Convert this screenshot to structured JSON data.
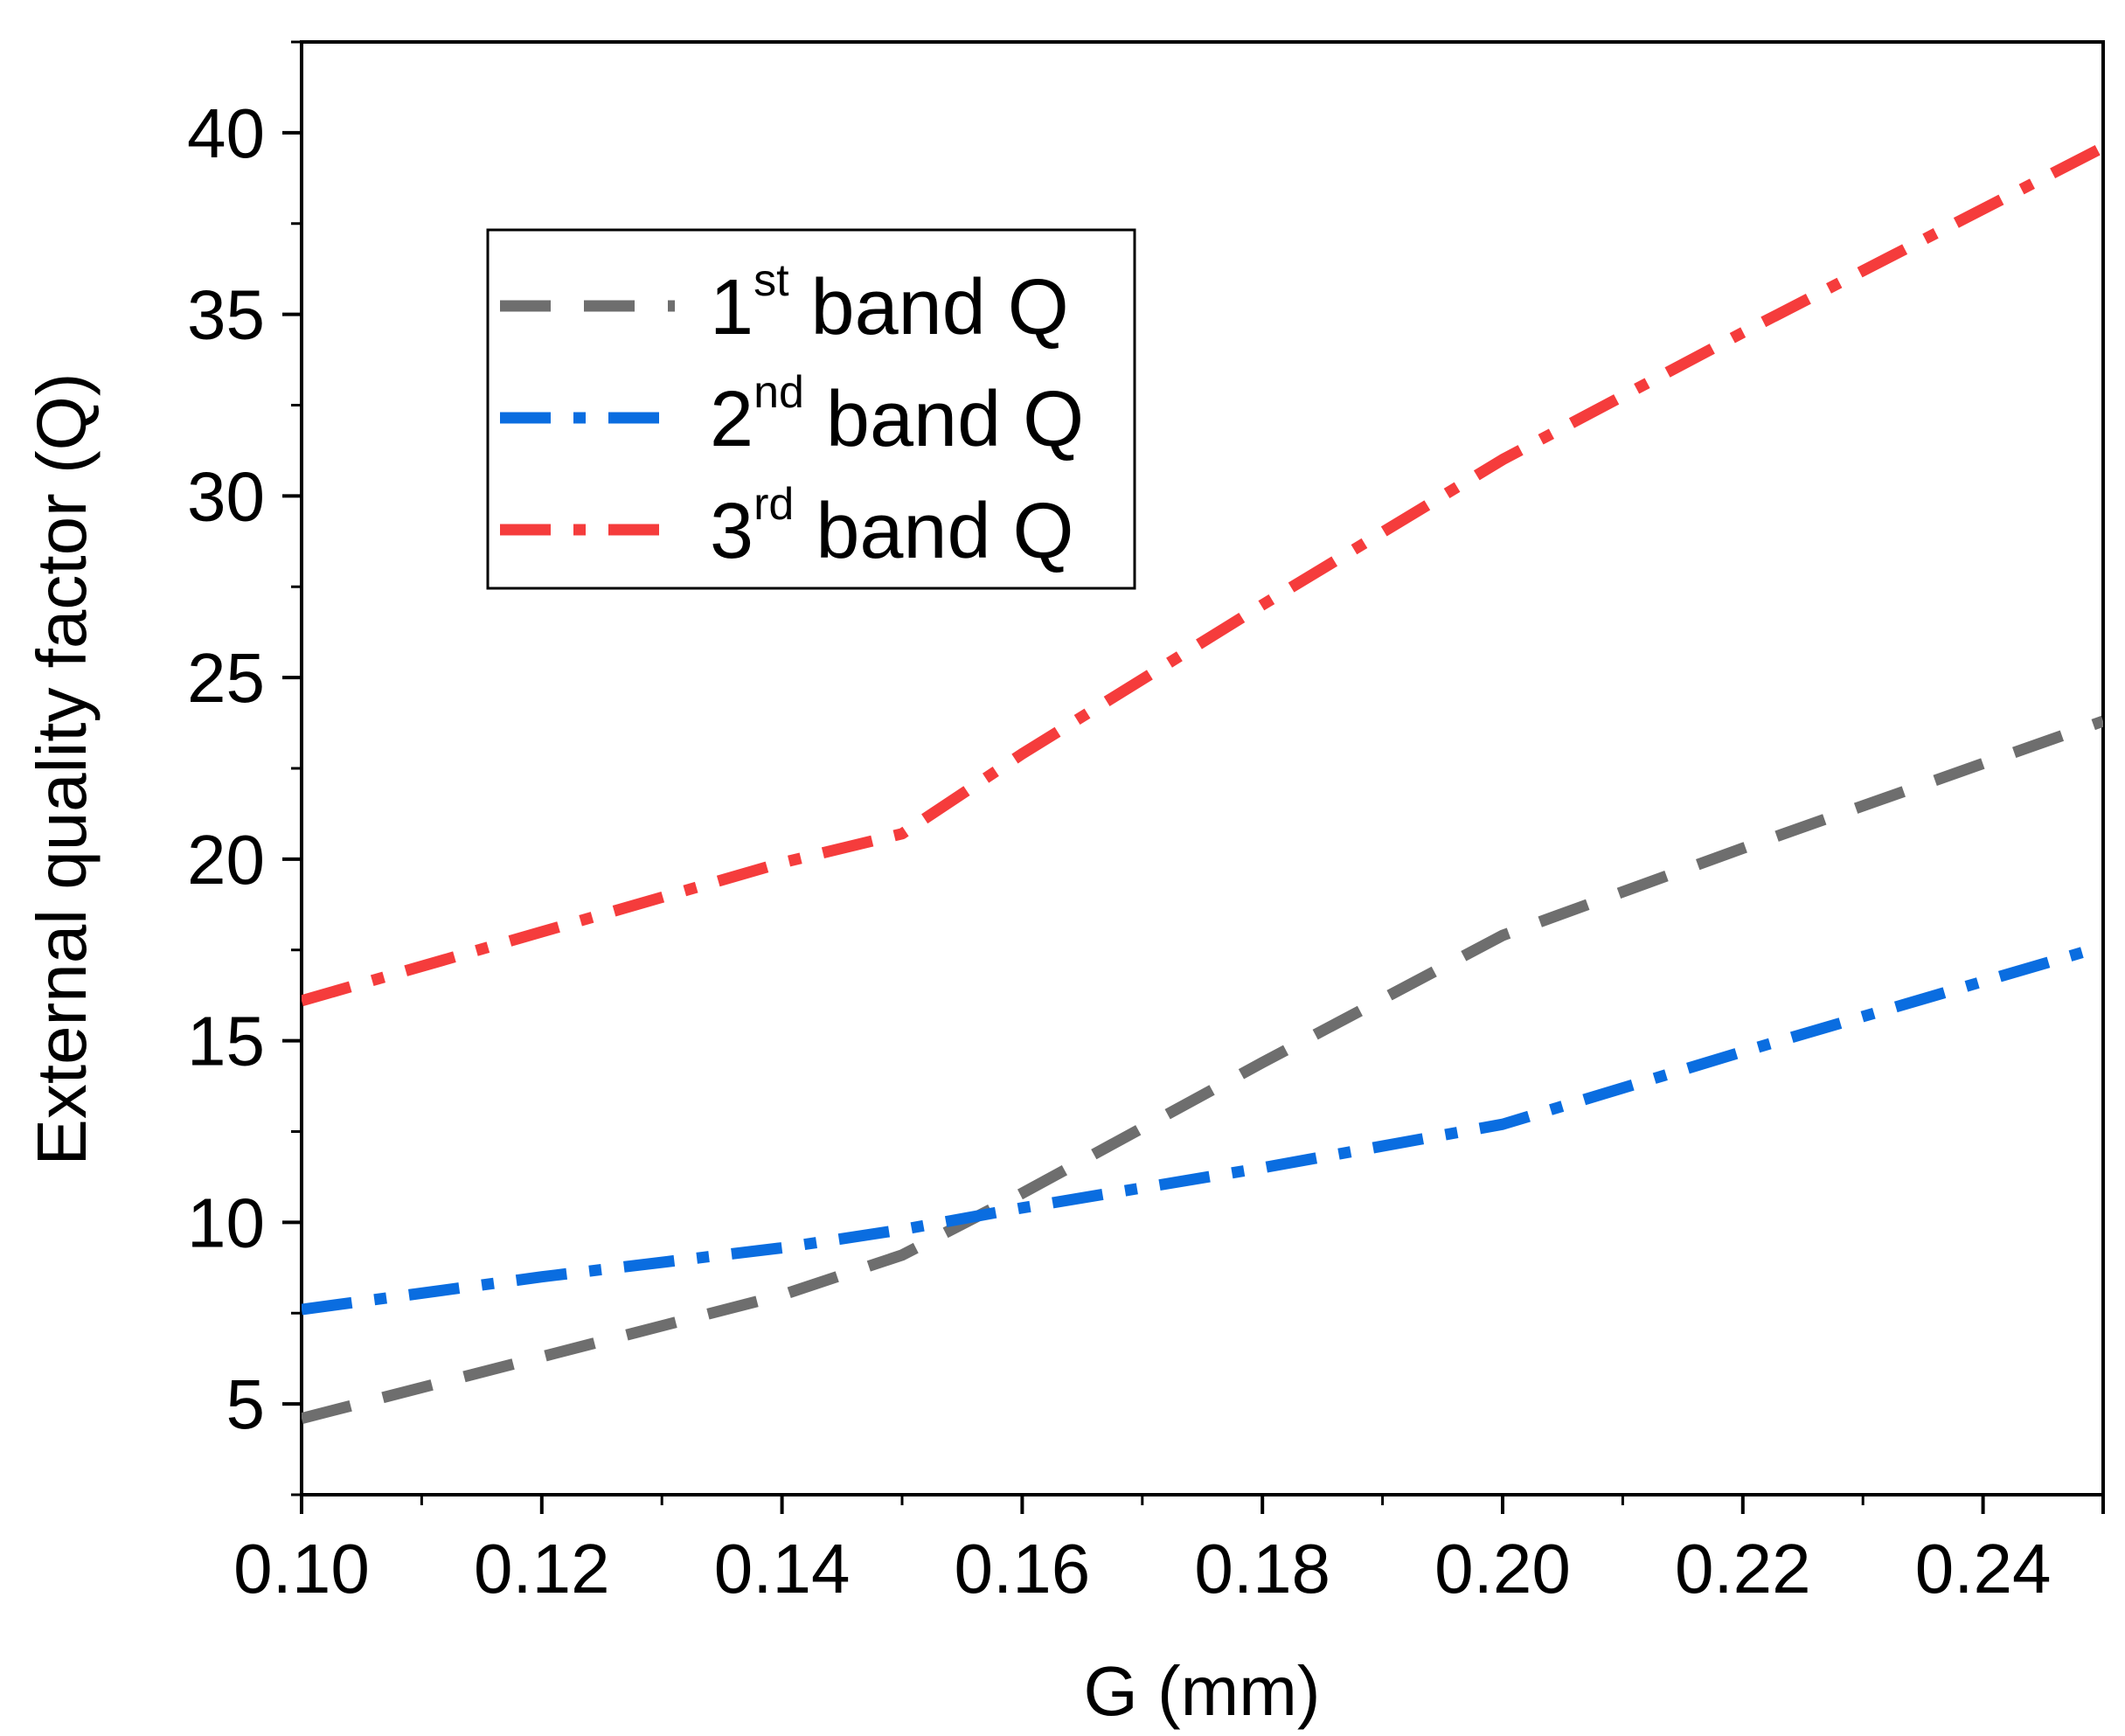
{
  "chart_data": {
    "type": "line",
    "title": "",
    "xlabel": "G (mm)",
    "ylabel": "External quality factor (Q)",
    "xlim": [
      0.1,
      0.25
    ],
    "ylim": [
      2.5,
      42.5
    ],
    "x_ticks": [
      "0.10",
      "0.12",
      "0.14",
      "0.16",
      "0.18",
      "0.20",
      "0.22",
      "0.24"
    ],
    "y_ticks": [
      "5",
      "10",
      "15",
      "20",
      "25",
      "30",
      "35",
      "40"
    ],
    "grid": false,
    "legend_position": "top-left",
    "x": [
      0.1,
      0.12,
      0.14,
      0.15,
      0.16,
      0.18,
      0.2,
      0.22,
      0.25
    ],
    "series": [
      {
        "name": "1st band Q",
        "label_main": "1",
        "label_sup": "st",
        "label_rest": " band Q",
        "color": "#6e6e6e",
        "style": "dash",
        "values": [
          4.6,
          6.3,
          8.0,
          9.1,
          10.8,
          14.4,
          17.9,
          20.3,
          23.8
        ]
      },
      {
        "name": "2nd band Q",
        "label_main": "2",
        "label_sup": "nd",
        "label_rest": " band Q",
        "color": "#0a6de0",
        "style": "dash-dot",
        "values": [
          7.6,
          8.5,
          9.3,
          9.8,
          10.4,
          11.5,
          12.7,
          14.7,
          17.6
        ]
      },
      {
        "name": "3rd band Q",
        "label_main": "3",
        "label_sup": "rd",
        "label_rest": " band Q",
        "color": "#f53c3c",
        "style": "dash-dot",
        "values": [
          16.1,
          18.0,
          19.9,
          20.7,
          22.9,
          27.0,
          31.0,
          34.5,
          39.6
        ]
      }
    ]
  }
}
